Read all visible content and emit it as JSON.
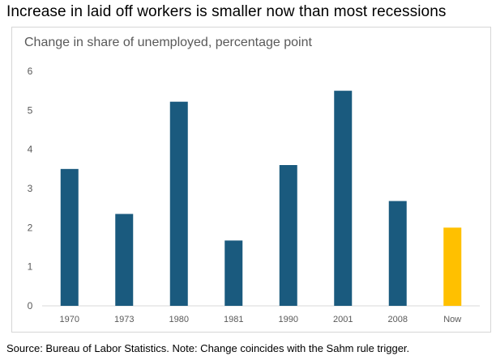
{
  "headline": "Increase in laid off workers is smaller now than most recessions",
  "source_note": "Source: Bureau of Labor Statistics. Note: Change coincides with the Sahm rule trigger.",
  "chart_data": {
    "type": "bar",
    "title": "Change in share of unemployed, percentage point",
    "xlabel": "",
    "ylabel": "",
    "categories": [
      "1970",
      "1973",
      "1980",
      "1981",
      "1990",
      "2001",
      "2008",
      "Now"
    ],
    "values": [
      3.5,
      2.35,
      5.22,
      1.67,
      3.6,
      5.5,
      2.68,
      2.0
    ],
    "ylim": [
      0,
      6
    ],
    "yticks": [
      0,
      1,
      2,
      3,
      4,
      5,
      6
    ],
    "grid": false,
    "legend": "none",
    "colors": {
      "default": "#1a5a7e",
      "highlight": "#ffc000",
      "axis_text": "#595959",
      "axis_line": "#d9d9d9"
    },
    "highlight_category": "Now"
  }
}
